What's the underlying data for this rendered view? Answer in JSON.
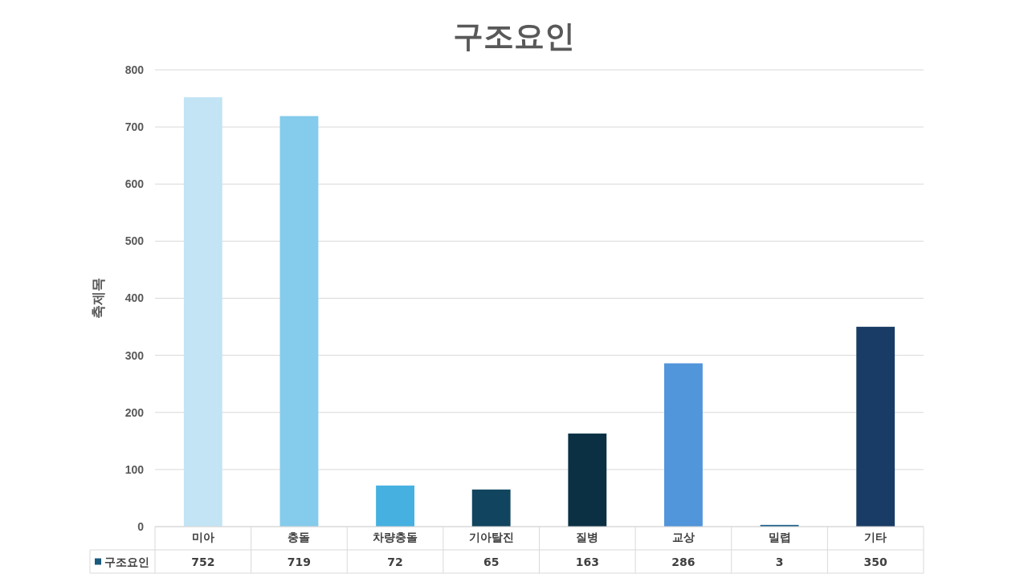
{
  "chart_data": {
    "type": "bar",
    "title": "구조요인",
    "ylabel": "축제목",
    "categories": [
      "미아",
      "충돌",
      "차량충돌",
      "기아탈진",
      "질병",
      "교상",
      "밀렵",
      "기타"
    ],
    "series": [
      {
        "name": "구조요인",
        "color": "#1a5a7e",
        "colors": [
          "#c2e4f4",
          "#85cbeb",
          "#46b0e0",
          "#11445e",
          "#0b3044",
          "#5195da",
          "#1a5f8a",
          "#183c65"
        ],
        "values": [
          752,
          719,
          72,
          65,
          163,
          286,
          3,
          350
        ]
      }
    ],
    "ylim": [
      0,
      800
    ],
    "yticks": [
      0,
      100,
      200,
      300,
      400,
      500,
      600,
      700,
      800
    ],
    "grid": "y",
    "legend": "bottom",
    "data_labels": true
  }
}
